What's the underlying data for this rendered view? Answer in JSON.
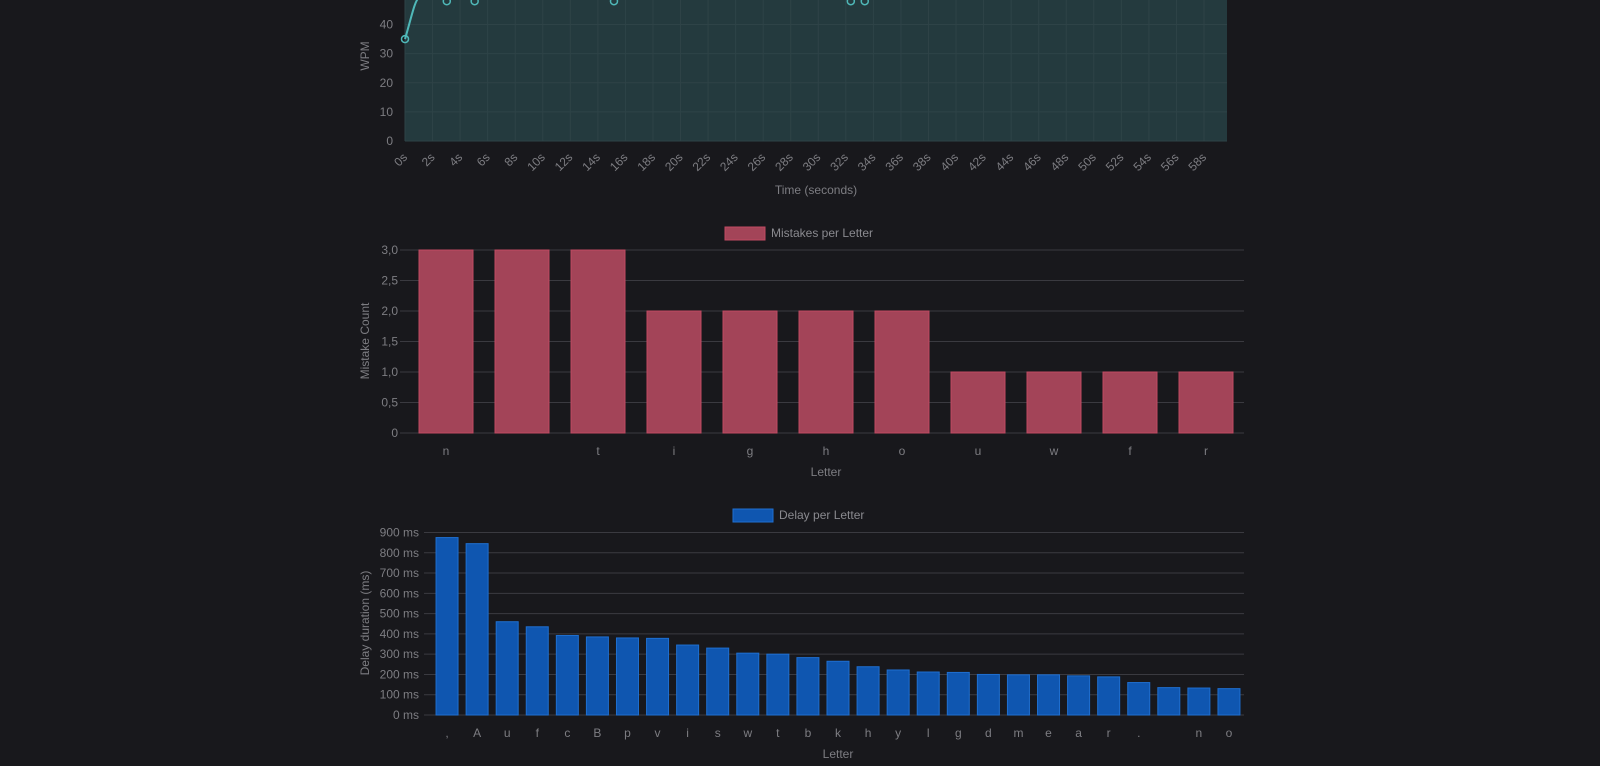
{
  "chart_data": [
    {
      "type": "line",
      "id": "wpm",
      "xlabel": "Time (seconds)",
      "ylabel": "WPM",
      "x_tick_labels": [
        "0s",
        "2s",
        "4s",
        "6s",
        "8s",
        "10s",
        "12s",
        "14s",
        "16s",
        "18s",
        "20s",
        "22s",
        "24s",
        "26s",
        "28s",
        "30s",
        "32s",
        "34s",
        "36s",
        "38s",
        "40s",
        "42s",
        "44s",
        "46s",
        "48s",
        "50s",
        "52s",
        "54s",
        "56s",
        "58s"
      ],
      "y_ticks": [
        0,
        10,
        20,
        30,
        40
      ],
      "y_visible_max": 48,
      "x": [
        0,
        3,
        5,
        15,
        32,
        33
      ],
      "values": [
        35,
        48,
        48,
        48,
        48,
        48
      ],
      "grid": true,
      "colors": {
        "line": "#4fb8b8",
        "fill": "#243a3e",
        "grid": "#2e4347"
      }
    },
    {
      "type": "bar",
      "id": "mistakes",
      "legend": "Mistakes per Letter",
      "legend_placement": "top-center",
      "xlabel": "Letter",
      "ylabel": "Mistake Count",
      "categories": [
        "n",
        " ",
        "t",
        "i",
        "g",
        "h",
        "o",
        "u",
        "w",
        "f",
        "r"
      ],
      "values": [
        3,
        3,
        3,
        2,
        2,
        2,
        2,
        1,
        1,
        1,
        1
      ],
      "y_tick_labels": [
        "0",
        "0,5",
        "1,0",
        "1,5",
        "2,0",
        "2,5",
        "3,0"
      ],
      "ylim": [
        0,
        3
      ],
      "grid": true,
      "colors": {
        "bar": "#a34458",
        "border": "#c04a62",
        "legend": "#a34458"
      }
    },
    {
      "type": "bar",
      "id": "delay",
      "legend": "Delay per Letter",
      "legend_placement": "top-center",
      "xlabel": "Letter",
      "ylabel": "Delay duration (ms)",
      "categories": [
        ",",
        "A",
        "u",
        "f",
        "c",
        "B",
        "p",
        "v",
        "i",
        "s",
        "w",
        "t",
        "b",
        "k",
        "h",
        "y",
        "l",
        "g",
        "d",
        "m",
        "e",
        "a",
        "r",
        ".",
        " ",
        "n",
        "o"
      ],
      "values": [
        875,
        845,
        460,
        435,
        392,
        385,
        380,
        378,
        345,
        330,
        305,
        300,
        283,
        265,
        238,
        222,
        212,
        210,
        200,
        198,
        198,
        193,
        188,
        160,
        135,
        133,
        130
      ],
      "y_tick_labels": [
        "0 ms",
        "100 ms",
        "200 ms",
        "300 ms",
        "400 ms",
        "500 ms",
        "600 ms",
        "700 ms",
        "800 ms",
        "900 ms"
      ],
      "ylim": [
        0,
        900
      ],
      "grid": true,
      "colors": {
        "bar": "#0f56b0",
        "border": "#1f6fd0",
        "legend": "#0f56b0"
      }
    }
  ]
}
